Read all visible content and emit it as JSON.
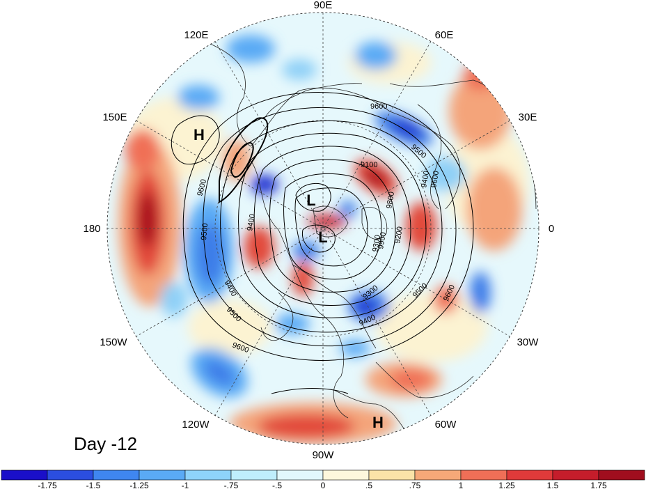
{
  "day_label": "Day -12",
  "longitude_labels": [
    "90E",
    "60E",
    "30E",
    "0",
    "30W",
    "60W",
    "90W",
    "120W",
    "150W",
    "180",
    "150E",
    "120E"
  ],
  "pressure_systems": [
    "H",
    "L",
    "L",
    "H"
  ],
  "contour_labels": [
    "9600",
    "9500",
    "9100",
    "9400",
    "9200",
    "9300",
    "9600",
    "9500",
    "9400",
    "9500",
    "9600",
    "9300",
    "9400",
    "9400",
    "9500",
    "9600",
    "9800",
    "9900",
    "9600"
  ],
  "colorbar": {
    "ticks": [
      "-1.75",
      "-1.5",
      "-1.25",
      "-1",
      "-.75",
      "-.5",
      "0",
      ".5",
      ".75",
      "1",
      "1.25",
      "1.5",
      "1.75"
    ],
    "colors": [
      "#1a0fc9",
      "#2b4ee0",
      "#3f86f0",
      "#5aaaf5",
      "#8ed3fa",
      "#bfeefc",
      "#e2f8fc",
      "#fdf8dc",
      "#fbe3a8",
      "#f6a878",
      "#f06f57",
      "#e03a3a",
      "#c51d2b",
      "#a00e1e"
    ]
  },
  "anomaly_color_scale": {
    "deep_blue": "#1e2fd0",
    "blue": "#3c7de8",
    "light_blue": "#8fd0f7",
    "pale_blue": "#ddf5fc",
    "pale_yellow": "#fcf3d2",
    "orange": "#f4a47a",
    "red": "#e24a3b",
    "dark_red": "#a80f1f"
  }
}
